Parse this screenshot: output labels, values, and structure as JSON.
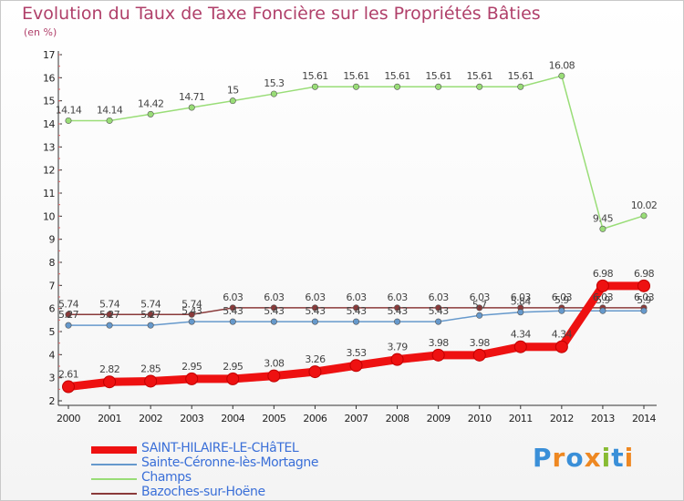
{
  "title": "Evolution du Taux de Taxe Foncière sur les Propriétés Bâties",
  "unit": "(en %)",
  "brand": "Proxiti",
  "chart_data": {
    "type": "line",
    "x": [
      2000,
      2001,
      2002,
      2003,
      2004,
      2005,
      2006,
      2007,
      2008,
      2009,
      2010,
      2011,
      2012,
      2013,
      2014
    ],
    "ylim": [
      2,
      17
    ],
    "yticks": [
      2,
      3,
      4,
      5,
      6,
      7,
      8,
      9,
      10,
      11,
      12,
      13,
      14,
      15,
      16,
      17
    ],
    "grid": false,
    "legend_position": "bottom-left",
    "series": [
      {
        "name": "Champs",
        "color": "#99dd77",
        "values": [
          14.14,
          14.14,
          14.42,
          14.71,
          15,
          15.3,
          15.61,
          15.61,
          15.61,
          15.61,
          15.61,
          15.61,
          16.08,
          9.45,
          10.02
        ],
        "labels": [
          "14.14",
          "14.14",
          "14.42",
          "14.71",
          "15",
          "15.3",
          "15.61",
          "15.61",
          "15.61",
          "15.61",
          "15.61",
          "15.61",
          "16.08",
          "9.45",
          "10.02"
        ]
      },
      {
        "name": "Bazoches-sur-Hoëne",
        "color": "#8a3a3a",
        "values": [
          5.74,
          5.74,
          5.74,
          5.74,
          6.03,
          6.03,
          6.03,
          6.03,
          6.03,
          6.03,
          6.03,
          6.03,
          6.03,
          6.03,
          6.03
        ],
        "labels": [
          "5.74",
          "5.74",
          "5.74",
          "5.74",
          "6.03",
          "6.03",
          "6.03",
          "6.03",
          "6.03",
          "6.03",
          "6.03",
          "6.03",
          "6.03",
          "6.03",
          "6.03"
        ]
      },
      {
        "name": "Sainte-Céronne-lès-Mortagne",
        "color": "#6699cc",
        "values": [
          5.27,
          5.27,
          5.27,
          5.43,
          5.43,
          5.43,
          5.43,
          5.43,
          5.43,
          5.43,
          5.7,
          5.84,
          5.9,
          5.9,
          5.9
        ],
        "labels": [
          "5.27",
          "5.27",
          "5.27",
          "5.43",
          "5.43",
          "5.43",
          "5.43",
          "5.43",
          "5.43",
          "5.43",
          "5.7",
          "5.84",
          "5.9",
          "5.9",
          "5.9"
        ]
      },
      {
        "name": "SAINT-HILAIRE-LE-CHâTEL",
        "color": "#ee1111",
        "values": [
          2.61,
          2.82,
          2.85,
          2.95,
          2.95,
          3.08,
          3.26,
          3.53,
          3.79,
          3.98,
          3.98,
          4.34,
          4.34,
          6.98,
          6.98
        ],
        "labels": [
          "2.61",
          "2.82",
          "2.85",
          "2.95",
          "2.95",
          "3.08",
          "3.26",
          "3.53",
          "3.79",
          "3.98",
          "3.98",
          "4.34",
          "4.34",
          "6.98",
          "6.98"
        ]
      }
    ]
  },
  "legend": [
    {
      "label": "SAINT-HILAIRE-LE-CHâTEL",
      "color": "#ee1111"
    },
    {
      "label": "Sainte-Céronne-lès-Mortagne",
      "color": "#6699cc"
    },
    {
      "label": "Champs",
      "color": "#99dd77"
    },
    {
      "label": "Bazoches-sur-Hoëne",
      "color": "#8a3a3a"
    }
  ]
}
